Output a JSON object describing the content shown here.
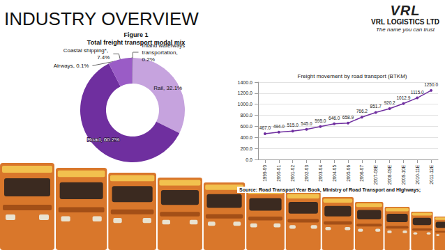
{
  "header": {
    "title": "INDUSTRY OVERVIEW",
    "logo": "VRL",
    "company": "VRL LOGISTICS LTD",
    "tagline": "The name you can trust"
  },
  "source": "Source: Road Transport Year Book, Ministry of Road Transport and Highways;",
  "chart_data": [
    {
      "type": "donut",
      "title": "Figure 1",
      "subtitle": "Total freight transport modal mix",
      "categories": [
        "Inland waterways transportation",
        "Rail",
        "Road",
        "Coastal shipping*",
        "Airways"
      ],
      "values": [
        0.2,
        32.1,
        60.2,
        7.4,
        0.1
      ],
      "value_labels": [
        "Inland waterways transportation, 0.2%",
        "Rail, 32.1%",
        "Road, 60.2%",
        "Coastal shipping*, 7.4%",
        "Airways, 0.1%"
      ],
      "colors": [
        "#b58fd3",
        "#c6a3de",
        "#6f2f9f",
        "#9a5cc6",
        "#4b2173"
      ],
      "data_labels": true
    },
    {
      "type": "line",
      "title": "Freight movement by road transport (BTKM)",
      "categories": [
        "1999-00",
        "2000-01",
        "2001-02",
        "2002-03",
        "2003-04",
        "2004-05",
        "2005-06",
        "2006-07",
        "2007-08E",
        "2008-09E",
        "2009-10E",
        "2010-11E",
        "2011-12E"
      ],
      "values": [
        467,
        494,
        515,
        545,
        595,
        646,
        658.9,
        766.2,
        851.7,
        920.2,
        1012.9,
        1115,
        1250
      ],
      "value_labels": [
        "467.0",
        "494.0",
        "515.0",
        "545.0",
        "595.0",
        "646.0",
        "658.9",
        "766.2",
        "851.7",
        "920.2",
        "1012.9",
        "1115.0",
        "1250.0"
      ],
      "color": "#7030a0",
      "marker": "circle",
      "ylim": [
        0,
        1400
      ],
      "yticks": [
        {
          "value": 0,
          "label": "0.0"
        },
        {
          "value": 200,
          "label": "200.0"
        },
        {
          "value": 400,
          "label": "400.0"
        },
        {
          "value": 600,
          "label": "600.0"
        },
        {
          "value": 800,
          "label": "800.0"
        },
        {
          "value": 1000,
          "label": "1000.0"
        },
        {
          "value": 1200,
          "label": "1200.0"
        },
        {
          "value": 1400,
          "label": "1400.0"
        }
      ],
      "grid": true,
      "data_labels": true
    }
  ]
}
